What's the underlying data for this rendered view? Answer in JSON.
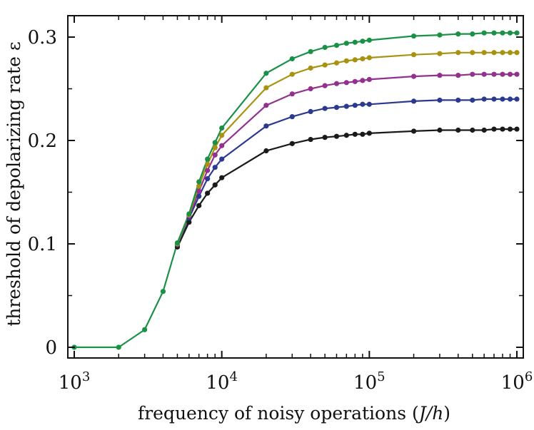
{
  "chart_data": {
    "type": "line",
    "xscale": "log",
    "xlim": [
      1000,
      1000000
    ],
    "ylim": [
      -0.01,
      0.315
    ],
    "xlabel": "frequency of noisy operations (J/h)",
    "xlabel_main": "frequency of noisy operations (",
    "xlabel_var": "J/h",
    "xlabel_close": ")",
    "ylabel": "threshold of depolarizing rate ε",
    "grid": false,
    "legend": "none",
    "x_ticks": [
      {
        "value": 1000,
        "base": "10",
        "exp": "3"
      },
      {
        "value": 10000,
        "base": "10",
        "exp": "4"
      },
      {
        "value": 100000,
        "base": "10",
        "exp": "5"
      },
      {
        "value": 1000000,
        "base": "10",
        "exp": "6"
      }
    ],
    "y_ticks": [
      {
        "value": 0,
        "label": "0"
      },
      {
        "value": 0.1,
        "label": "0.1"
      },
      {
        "value": 0.2,
        "label": "0.2"
      },
      {
        "value": 0.3,
        "label": "0.3"
      }
    ],
    "shared_prefix": {
      "x": [
        1000,
        2000,
        3000,
        4000,
        5000
      ],
      "y": [
        0.0,
        0.0,
        0.017,
        0.054,
        0.1
      ]
    },
    "series": [
      {
        "name": "black",
        "color": "#1a1a1a",
        "x": [
          5000,
          6000,
          7000,
          8000,
          9000,
          10000,
          20000,
          30000,
          40000,
          50000,
          60000,
          70000,
          80000,
          90000,
          100000,
          200000,
          300000,
          400000,
          500000,
          600000,
          700000,
          800000,
          900000,
          1000000
        ],
        "y": [
          0.097,
          0.121,
          0.137,
          0.149,
          0.157,
          0.164,
          0.19,
          0.197,
          0.201,
          0.203,
          0.204,
          0.205,
          0.206,
          0.206,
          0.207,
          0.209,
          0.21,
          0.21,
          0.21,
          0.21,
          0.211,
          0.211,
          0.211,
          0.211
        ]
      },
      {
        "name": "blue",
        "color": "#2b3a8f",
        "x": [
          5000,
          6000,
          7000,
          8000,
          9000,
          10000,
          20000,
          30000,
          40000,
          50000,
          60000,
          70000,
          80000,
          90000,
          100000,
          200000,
          300000,
          400000,
          500000,
          600000,
          700000,
          800000,
          900000,
          1000000
        ],
        "y": [
          0.099,
          0.125,
          0.146,
          0.163,
          0.174,
          0.182,
          0.214,
          0.223,
          0.228,
          0.231,
          0.232,
          0.233,
          0.234,
          0.235,
          0.235,
          0.238,
          0.239,
          0.239,
          0.239,
          0.24,
          0.24,
          0.24,
          0.24,
          0.24
        ]
      },
      {
        "name": "purple",
        "color": "#93318f",
        "x": [
          5000,
          6000,
          7000,
          8000,
          9000,
          10000,
          20000,
          30000,
          40000,
          50000,
          60000,
          70000,
          80000,
          90000,
          100000,
          200000,
          300000,
          400000,
          500000,
          600000,
          700000,
          800000,
          900000,
          1000000
        ],
        "y": [
          0.1,
          0.127,
          0.151,
          0.171,
          0.186,
          0.195,
          0.234,
          0.245,
          0.25,
          0.253,
          0.255,
          0.256,
          0.257,
          0.258,
          0.259,
          0.262,
          0.263,
          0.263,
          0.264,
          0.264,
          0.264,
          0.264,
          0.264,
          0.264
        ]
      },
      {
        "name": "olive",
        "color": "#a99212",
        "x": [
          5000,
          6000,
          7000,
          8000,
          9000,
          10000,
          20000,
          30000,
          40000,
          50000,
          60000,
          70000,
          80000,
          90000,
          100000,
          200000,
          300000,
          400000,
          500000,
          600000,
          700000,
          800000,
          900000,
          1000000
        ],
        "y": [
          0.1,
          0.128,
          0.156,
          0.177,
          0.193,
          0.205,
          0.251,
          0.264,
          0.27,
          0.273,
          0.275,
          0.277,
          0.278,
          0.279,
          0.28,
          0.283,
          0.284,
          0.285,
          0.285,
          0.285,
          0.285,
          0.285,
          0.285,
          0.285
        ]
      },
      {
        "name": "green",
        "color": "#1a9146",
        "x": [
          1000,
          2000,
          3000,
          4000,
          5000,
          6000,
          7000,
          8000,
          9000,
          10000,
          20000,
          30000,
          40000,
          50000,
          60000,
          70000,
          80000,
          90000,
          100000,
          200000,
          300000,
          400000,
          500000,
          600000,
          700000,
          800000,
          900000,
          1000000
        ],
        "y": [
          0.0,
          0.0,
          0.017,
          0.054,
          0.101,
          0.129,
          0.16,
          0.182,
          0.198,
          0.212,
          0.265,
          0.279,
          0.286,
          0.29,
          0.292,
          0.294,
          0.295,
          0.296,
          0.297,
          0.301,
          0.302,
          0.303,
          0.303,
          0.304,
          0.304,
          0.304,
          0.304,
          0.304
        ]
      }
    ]
  }
}
